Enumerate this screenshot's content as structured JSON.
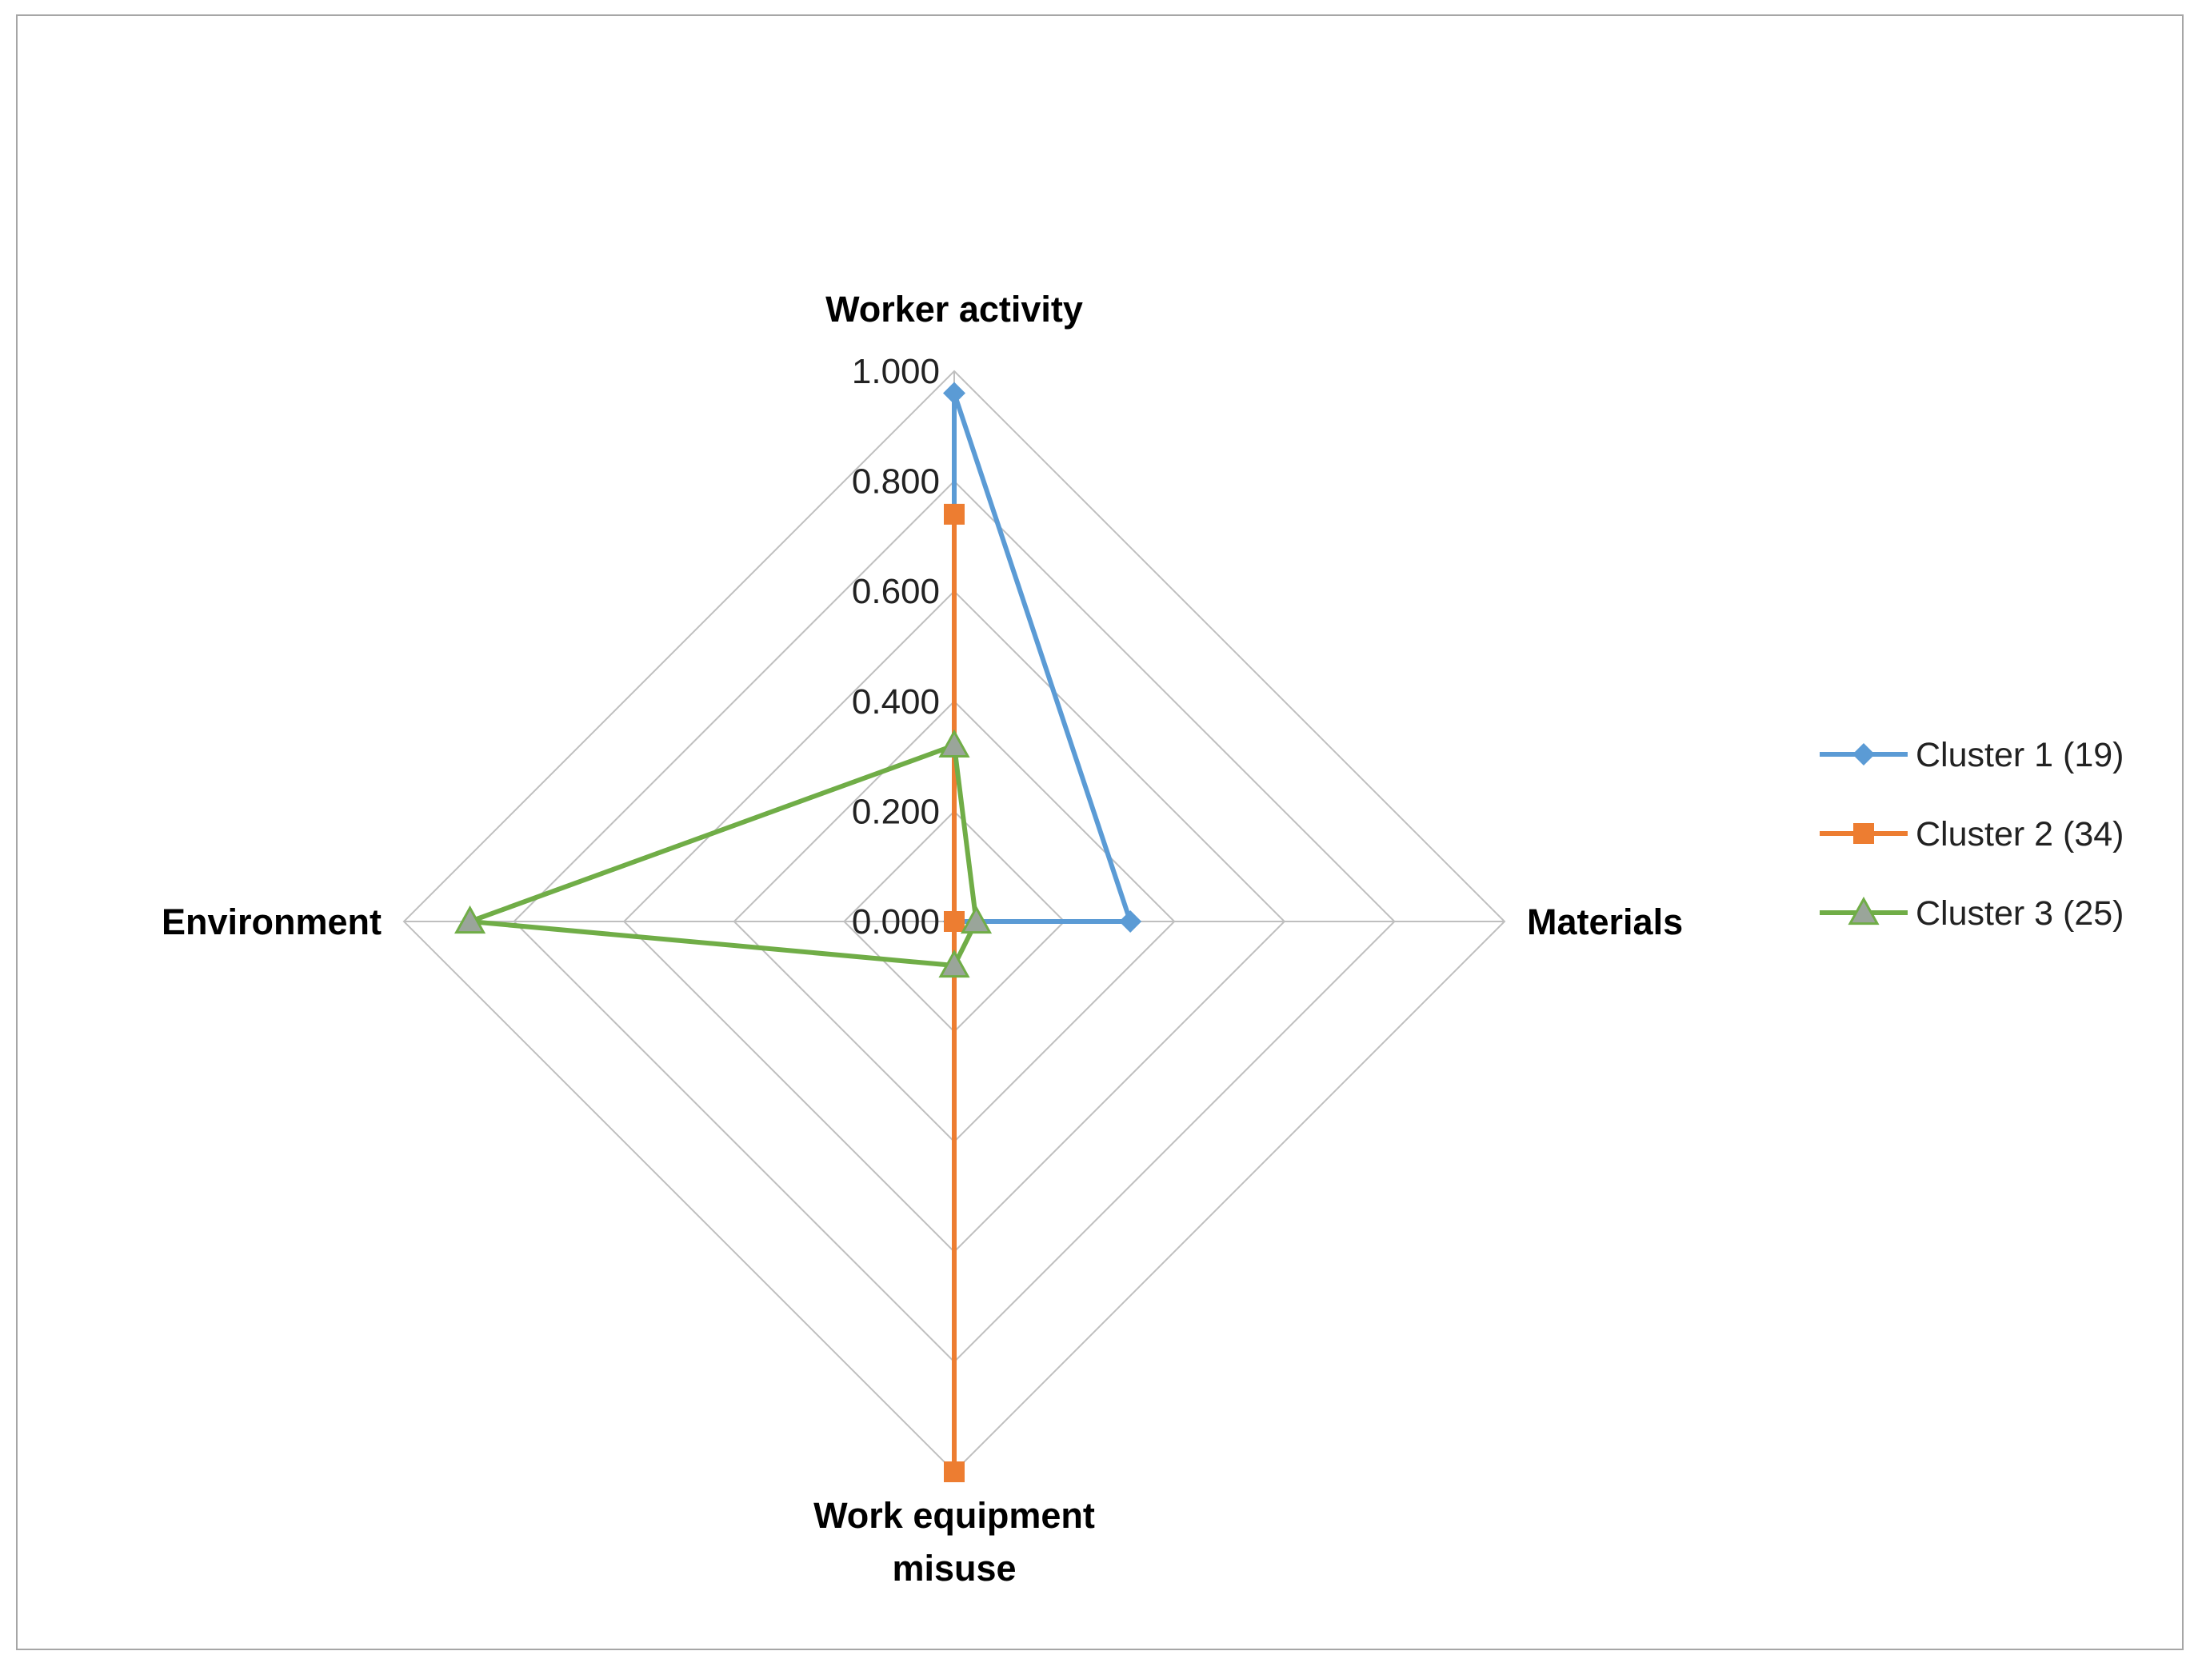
{
  "chart_data": {
    "type": "radar",
    "axes": [
      "Worker activity",
      "Materials",
      "Work equipment misuse",
      "Environment"
    ],
    "axis_label_lines": [
      [
        "Worker activity"
      ],
      [
        "Materials"
      ],
      [
        "Work equipment",
        "misuse"
      ],
      [
        "Environment"
      ]
    ],
    "rlim": [
      0,
      1
    ],
    "ticks": [
      0.0,
      0.2,
      0.4,
      0.6,
      0.8,
      1.0
    ],
    "tick_labels": [
      "0.000",
      "0.200",
      "0.400",
      "0.600",
      "0.800",
      "1.000"
    ],
    "grid": true,
    "legend_position": "right",
    "series": [
      {
        "name": "Cluster 1 (19)",
        "color": "#5b9bd5",
        "marker": "diamond",
        "values": [
          0.96,
          0.32,
          0.0,
          0.0
        ]
      },
      {
        "name": "Cluster 2 (34)",
        "color": "#ed7d31",
        "marker": "square",
        "values": [
          0.74,
          0.0,
          1.0,
          0.0
        ]
      },
      {
        "name": "Cluster 3 (25)",
        "color": "#70ad47",
        "marker": "triangle",
        "values": [
          0.32,
          0.04,
          0.08,
          0.88
        ]
      }
    ]
  }
}
